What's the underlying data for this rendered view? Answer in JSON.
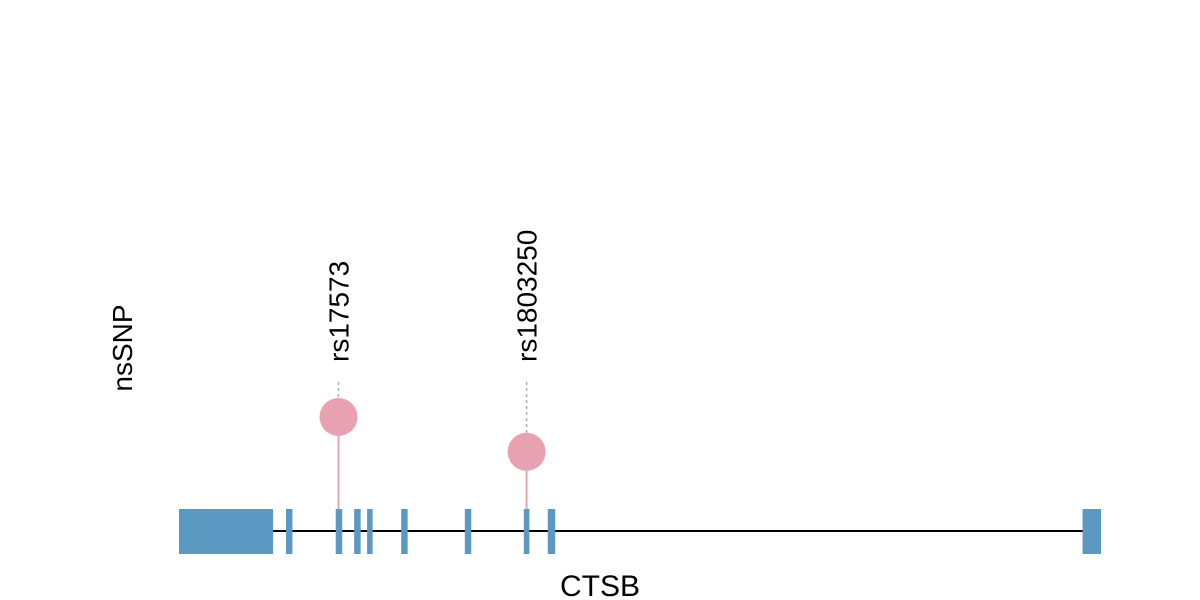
{
  "track_label": "nsSNP",
  "gene_name": "CTSB",
  "colors": {
    "exon": "#5b98c2",
    "snp_head": "#e8a1b1",
    "snp_stick": "#e8a1b1",
    "backbone": "#000000",
    "label_leader": "#b0b0b0",
    "text": "#000000"
  },
  "gene": {
    "start": 0,
    "end": 1000,
    "exons": [
      {
        "start": 0,
        "end": 102,
        "type": "utr"
      },
      {
        "start": 116,
        "end": 123,
        "type": "coding"
      },
      {
        "start": 170,
        "end": 177,
        "type": "coding"
      },
      {
        "start": 190,
        "end": 197,
        "type": "coding"
      },
      {
        "start": 204,
        "end": 210,
        "type": "coding"
      },
      {
        "start": 241,
        "end": 248,
        "type": "coding"
      },
      {
        "start": 310,
        "end": 317,
        "type": "coding"
      },
      {
        "start": 374,
        "end": 380,
        "type": "coding"
      },
      {
        "start": 400,
        "end": 408,
        "type": "coding"
      },
      {
        "start": 980,
        "end": 1000,
        "type": "utr"
      }
    ]
  },
  "snps": [
    {
      "id": "rs17573",
      "position": 173,
      "level": 1.0
    },
    {
      "id": "rs1803250",
      "position": 377,
      "level": 0.6
    }
  ]
}
